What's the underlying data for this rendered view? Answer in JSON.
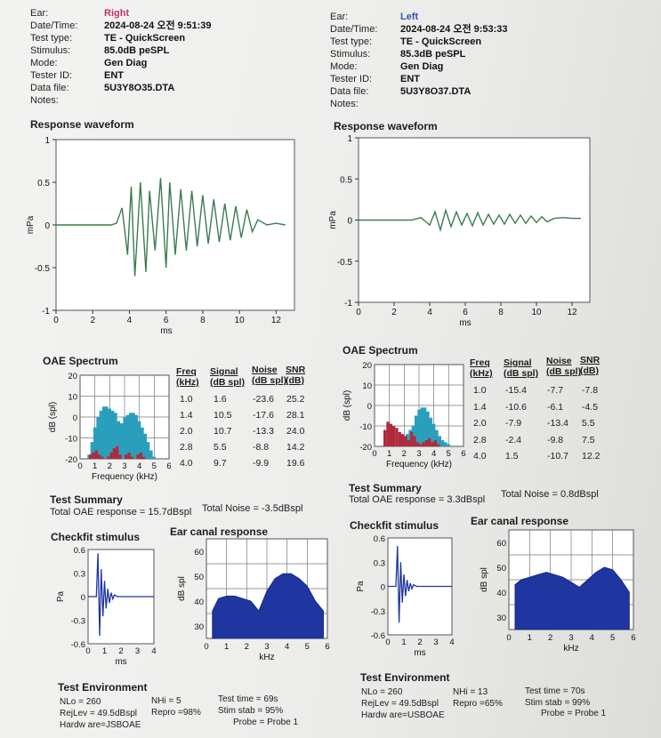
{
  "labels": {
    "ear": "Ear:",
    "date_time": "Date/Time:",
    "test_type": "Test type:",
    "stimulus": "Stimulus:",
    "mode": "Mode:",
    "tester_id": "Tester ID:",
    "data_file": "Data file:",
    "notes": "Notes:",
    "response_waveform": "Response waveform",
    "oae_spectrum": "OAE Spectrum",
    "test_summary": "Test Summary",
    "checkfit_stimulus": "Checkfit stimulus",
    "ear_canal_response": "Ear canal response",
    "test_environment": "Test Environment",
    "table_headers": [
      [
        "Freq",
        "(kHz)"
      ],
      [
        "Signal",
        "(dB spl)"
      ],
      [
        "Noise",
        "(dB spl)"
      ],
      [
        "SNR",
        "(dB)"
      ]
    ],
    "ms": "ms",
    "mPa": "mPa",
    "dB_spl_axis": "dB (spl)",
    "dB_spl": "dB spl",
    "Pa": "Pa",
    "frequency_khz": "Frequency (kHz)",
    "khz": "kHz"
  },
  "right": {
    "ear": "Right",
    "date_time": "2024-08-24 오전 9:51:39",
    "test_type": "TE - QuickScreen",
    "stimulus": "85.0dB peSPL",
    "mode": "Gen Diag",
    "tester_id": "ENT",
    "data_file": "5U3Y8O35.DTA",
    "table": [
      [
        "1.0",
        "1.6",
        "-23.6",
        "25.2"
      ],
      [
        "1.4",
        "10.5",
        "-17.6",
        "28.1"
      ],
      [
        "2.0",
        "10.7",
        "-13.3",
        "24.0"
      ],
      [
        "2.8",
        "5.5",
        "-8.8",
        "14.2"
      ],
      [
        "4.0",
        "9.7",
        "-9.9",
        "19.6"
      ]
    ],
    "summary_response": "Total OAE response =  15.7dBspl",
    "summary_noise": "Total Noise =  -3.5dBspl",
    "env": {
      "nlo": "NLo =  260",
      "nhi": "NHi =  5",
      "rejlev": "RejLev = 49.5dBspl",
      "repro": "Repro =98%",
      "hardware": "Hardw are=JSBOAE",
      "test_time": "Test time = 69s",
      "stim_stab": "Stim stab = 95%",
      "probe": "Probe = Probe 1"
    }
  },
  "left": {
    "ear": "Left",
    "date_time": "2024-08-24 오전 9:53:33",
    "test_type": "TE - QuickScreen",
    "stimulus": "85.3dB peSPL",
    "mode": "Gen Diag",
    "tester_id": "ENT",
    "data_file": "5U3Y8O37.DTA",
    "table": [
      [
        "1.0",
        "-15.4",
        "-7.7",
        "-7.8"
      ],
      [
        "1.4",
        "-10.6",
        "-6.1",
        "-4.5"
      ],
      [
        "2.0",
        "-7.9",
        "-13.4",
        "5.5"
      ],
      [
        "2.8",
        "-2.4",
        "-9.8",
        "7.5"
      ],
      [
        "4.0",
        "1.5",
        "-10.7",
        "12.2"
      ]
    ],
    "summary_response": "Total OAE response =  3.3dBspl",
    "summary_noise": "Total Noise =  0.8dBspl",
    "env": {
      "nlo": "NLo =  260",
      "nhi": "NHi =  13",
      "rejlev": "RejLev = 49.5dBspl",
      "repro": "Repro =65%",
      "hardware": "Hardw are=USBOAE",
      "test_time": "Test time = 70s",
      "stim_stab": "Stim stab = 99%",
      "probe": "Probe = Probe 1"
    }
  },
  "colors": {
    "waveform": "#3c7d4f",
    "noise_bar": "#b02a3c",
    "response_fill": "#2a9fbc",
    "canal_fill": "#1f35a0",
    "stimulus_line": "#1f35a0",
    "right": "#c0366b",
    "left": "#3a4fb0"
  },
  "chart_data": [
    {
      "id": "right-waveform",
      "type": "line",
      "title": "Response waveform",
      "xlabel": "ms",
      "ylabel": "mPa",
      "xlim": [
        0,
        13
      ],
      "ylim": [
        -1,
        1
      ],
      "x": [
        0,
        1,
        2,
        3,
        3.3,
        3.6,
        3.9,
        4.1,
        4.3,
        4.6,
        4.9,
        5.1,
        5.4,
        5.7,
        6,
        6.2,
        6.5,
        6.8,
        7.1,
        7.4,
        7.7,
        8,
        8.3,
        8.6,
        8.9,
        9.2,
        9.5,
        9.8,
        10.1,
        10.4,
        10.7,
        11,
        11.5,
        12,
        12.5
      ],
      "y": [
        0,
        0,
        0,
        0,
        0.02,
        0.2,
        -0.35,
        0.45,
        -0.6,
        0.5,
        -0.55,
        0.4,
        -0.3,
        0.55,
        -0.5,
        0.5,
        -0.35,
        0.42,
        -0.3,
        0.4,
        -0.25,
        0.35,
        -0.22,
        0.3,
        -0.2,
        0.25,
        -0.18,
        0.22,
        -0.15,
        0.18,
        -0.08,
        0.06,
        0,
        0.02,
        0
      ]
    },
    {
      "id": "left-waveform",
      "type": "line",
      "title": "Response waveform",
      "xlabel": "ms",
      "ylabel": "mPa",
      "xlim": [
        0,
        13
      ],
      "ylim": [
        -1,
        1
      ],
      "x": [
        0,
        2,
        3,
        3.5,
        4,
        4.3,
        4.6,
        4.9,
        5.2,
        5.5,
        5.8,
        6.1,
        6.4,
        6.7,
        7,
        7.3,
        7.6,
        7.9,
        8.2,
        8.5,
        8.8,
        9.1,
        9.4,
        9.7,
        10,
        10.3,
        10.6,
        11,
        11.5,
        12,
        12.5
      ],
      "y": [
        0,
        0,
        0,
        0.03,
        -0.06,
        0.1,
        -0.12,
        0.12,
        -0.08,
        0.1,
        -0.06,
        0.08,
        -0.07,
        0.09,
        -0.06,
        0.07,
        -0.05,
        0.06,
        -0.05,
        0.07,
        -0.04,
        0.06,
        -0.04,
        0.05,
        -0.03,
        0.04,
        -0.02,
        0.02,
        0.03,
        0.02,
        0.02
      ]
    },
    {
      "id": "right-spectrum",
      "type": "bar",
      "xlabel": "Frequency (kHz)",
      "ylabel": "dB (spl)",
      "xlim": [
        0,
        6
      ],
      "ylim": [
        -20,
        20
      ],
      "freq": [
        0.5,
        0.7,
        0.9,
        1.1,
        1.3,
        1.5,
        1.7,
        1.9,
        2.1,
        2.3,
        2.5,
        2.7,
        2.9,
        3.1,
        3.3,
        3.5,
        3.7,
        3.9,
        4.1,
        4.3,
        4.5,
        4.7,
        4.9,
        5.1,
        5.3,
        5.5
      ],
      "response": [
        -20,
        -18,
        -12,
        -5,
        0,
        3,
        5,
        4,
        3,
        2,
        -2,
        -4,
        -3,
        0,
        1,
        2,
        1,
        -2,
        -5,
        -8,
        -12,
        -16,
        -19,
        -20,
        -20,
        -20
      ],
      "noise": [
        -20,
        -18,
        -17,
        -16,
        -18,
        -19,
        -20,
        -19,
        -17,
        -15,
        -14,
        -18,
        -20,
        -18,
        -17,
        -19,
        -20,
        -18,
        -17,
        -19,
        -20,
        -20,
        -20,
        -20,
        -20,
        -20
      ]
    },
    {
      "id": "left-spectrum",
      "type": "bar",
      "xlabel": "Frequency (kHz)",
      "ylabel": "dB (spl)",
      "xlim": [
        0,
        6
      ],
      "ylim": [
        -20,
        20
      ],
      "freq": [
        0.5,
        0.7,
        0.9,
        1.1,
        1.3,
        1.5,
        1.7,
        1.9,
        2.1,
        2.3,
        2.5,
        2.7,
        2.9,
        3.1,
        3.3,
        3.5,
        3.7,
        3.9,
        4.1,
        4.3,
        4.5,
        4.7,
        4.9,
        5.1,
        5.3,
        5.5
      ],
      "response": [
        -20,
        -20,
        -20,
        -20,
        -20,
        -20,
        -20,
        -18,
        -16,
        -14,
        -12,
        -10,
        -5,
        -2,
        -1,
        -3,
        -6,
        -9,
        -12,
        -15,
        -17,
        -18,
        -19,
        -20,
        -20,
        -20
      ],
      "noise": [
        -20,
        -12,
        -8,
        -9,
        -10,
        -11,
        -13,
        -14,
        -15,
        -17,
        -13,
        -15,
        -18,
        -19,
        -18,
        -17,
        -16,
        -18,
        -17,
        -19,
        -20,
        -20,
        -20,
        -20,
        -20,
        -20
      ]
    },
    {
      "id": "right-stimulus",
      "type": "line",
      "title": "Checkfit stimulus",
      "xlabel": "ms",
      "ylabel": "Pa",
      "xlim": [
        0,
        4
      ],
      "ylim": [
        -0.6,
        0.6
      ],
      "x": [
        0,
        0.5,
        0.6,
        0.7,
        0.8,
        0.9,
        1,
        1.1,
        1.2,
        1.3,
        1.4,
        1.5,
        1.6,
        1.8,
        2,
        2.5,
        3,
        3.5,
        4
      ],
      "y": [
        0,
        0,
        0.55,
        -0.5,
        0.35,
        -0.25,
        0.2,
        -0.15,
        0.1,
        -0.08,
        0.05,
        -0.03,
        0.02,
        0,
        0,
        0,
        0,
        0,
        0
      ]
    },
    {
      "id": "left-stimulus",
      "type": "line",
      "title": "Checkfit stimulus",
      "xlabel": "ms",
      "ylabel": "Pa",
      "xlim": [
        0,
        4
      ],
      "ylim": [
        -0.6,
        0.6
      ],
      "x": [
        0,
        0.5,
        0.6,
        0.7,
        0.8,
        0.9,
        1,
        1.1,
        1.2,
        1.3,
        1.4,
        1.5,
        1.6,
        1.8,
        2,
        2.5,
        3,
        3.5,
        4
      ],
      "y": [
        0,
        0,
        0.5,
        -0.45,
        0.3,
        -0.2,
        0.15,
        -0.12,
        0.08,
        -0.06,
        0.04,
        -0.03,
        0.02,
        0,
        0,
        0,
        0,
        0,
        0
      ]
    },
    {
      "id": "right-canal",
      "type": "area",
      "title": "Ear canal response",
      "xlabel": "kHz",
      "ylabel": "dB spl",
      "xlim": [
        0,
        6
      ],
      "ylim": [
        25,
        65
      ],
      "x": [
        0.3,
        0.6,
        1,
        1.4,
        1.8,
        2.2,
        2.6,
        3,
        3.4,
        3.8,
        4.2,
        4.6,
        5,
        5.4,
        5.8
      ],
      "y": [
        36,
        41,
        42,
        42,
        41,
        40,
        36,
        44,
        49,
        51,
        51,
        49,
        46,
        40,
        36
      ]
    },
    {
      "id": "left-canal",
      "type": "area",
      "title": "Ear canal response",
      "xlabel": "kHz",
      "ylabel": "dB spl",
      "xlim": [
        0,
        6
      ],
      "ylim": [
        25,
        65
      ],
      "x": [
        0.3,
        0.6,
        1,
        1.4,
        1.8,
        2.2,
        2.6,
        3,
        3.4,
        3.8,
        4.2,
        4.6,
        5,
        5.4,
        5.8
      ],
      "y": [
        43,
        45,
        46,
        47,
        48,
        47,
        46,
        44,
        42,
        45,
        48,
        50,
        49,
        45,
        40
      ]
    }
  ]
}
